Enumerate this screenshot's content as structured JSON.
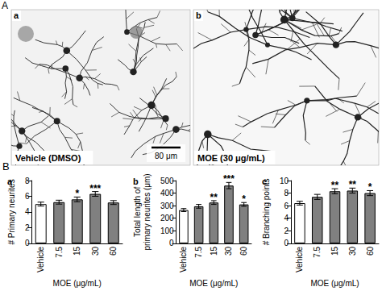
{
  "figure": {
    "panel_a": {
      "label": "A",
      "images": [
        {
          "tag": "a",
          "caption": "Vehicle (DMSO)",
          "scale_bar": "80 μm"
        },
        {
          "tag": "b",
          "caption": "MOE (30 μg/mL)"
        }
      ]
    },
    "panel_b": {
      "label": "B"
    }
  },
  "chart_data": [
    {
      "type": "bar",
      "title": "a",
      "x_label": "MOE (μg/mL)",
      "y_label": "# Primary neurites",
      "categories": [
        "Vehicle",
        "7.5",
        "15",
        "30",
        "60"
      ],
      "values": [
        5.0,
        5.25,
        5.6,
        6.3,
        5.2
      ],
      "errors": [
        0.25,
        0.25,
        0.3,
        0.3,
        0.25
      ],
      "annotations": [
        null,
        null,
        "*",
        "***",
        null
      ],
      "colors": [
        "#ffffff",
        "#808080",
        "#808080",
        "#808080",
        "#808080"
      ],
      "ylim": [
        0,
        8
      ],
      "yticks": [
        0,
        2,
        4,
        6,
        8
      ],
      "grid": false
    },
    {
      "type": "bar",
      "title": "b",
      "x_label": "MOE (μg/mL)",
      "y_label": "Total length of\nprimary neurites (μm)",
      "categories": [
        "Vehicle",
        "7.5",
        "15",
        "30",
        "60"
      ],
      "values": [
        265,
        295,
        325,
        460,
        310
      ],
      "errors": [
        12,
        15,
        15,
        25,
        15
      ],
      "annotations": [
        null,
        null,
        "**",
        "***",
        "*"
      ],
      "colors": [
        "#ffffff",
        "#808080",
        "#808080",
        "#808080",
        "#808080"
      ],
      "ylim": [
        0,
        500
      ],
      "yticks": [
        0,
        100,
        200,
        300,
        400,
        500
      ],
      "grid": false
    },
    {
      "type": "bar",
      "title": "c",
      "x_label": "MOE (μg/mL)",
      "y_label": "# Branching points",
      "categories": [
        "Vehicle",
        "7.5",
        "15",
        "30",
        "60"
      ],
      "values": [
        6.4,
        7.4,
        8.3,
        8.4,
        8.0
      ],
      "errors": [
        0.3,
        0.4,
        0.4,
        0.4,
        0.4
      ],
      "annotations": [
        null,
        null,
        "**",
        "**",
        "*"
      ],
      "colors": [
        "#ffffff",
        "#808080",
        "#808080",
        "#808080",
        "#808080"
      ],
      "ylim": [
        0,
        10
      ],
      "yticks": [
        0,
        2,
        4,
        6,
        8,
        10
      ],
      "grid": false
    }
  ]
}
